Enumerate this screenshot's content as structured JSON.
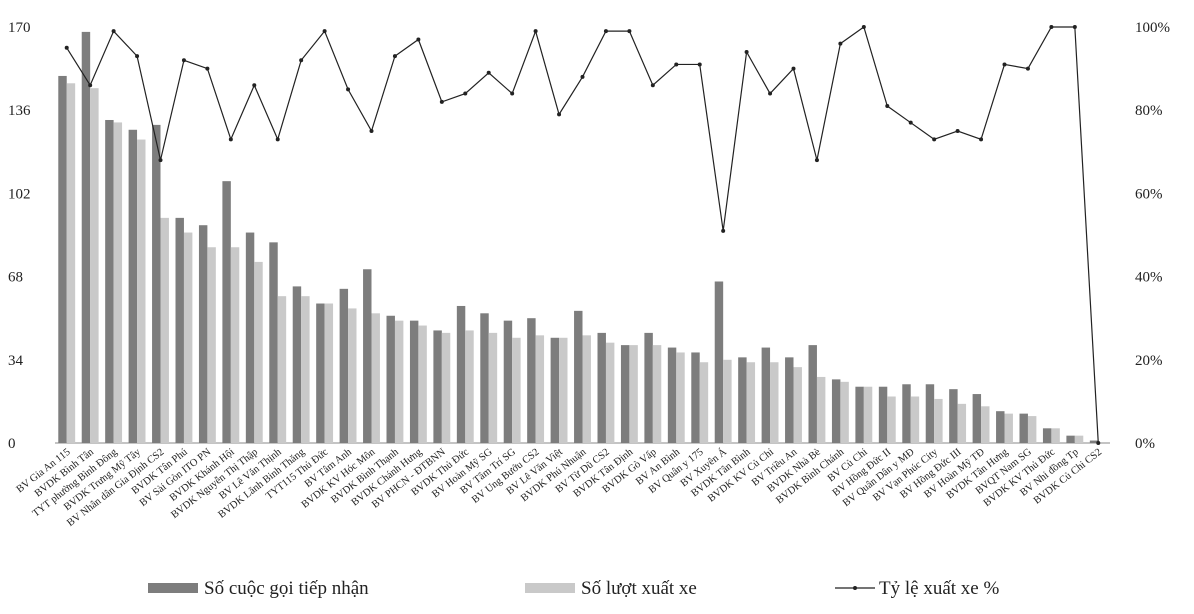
{
  "chart_data": {
    "type": "bar-line",
    "categories": [
      "BV Gia An 115",
      "BVDK Bình Tân",
      "TYT phường Bình Đông",
      "BVDK Trưng Mỹ Tây",
      "BV Nhân dân Gia Định CS2",
      "BVDK Tân Phú",
      "BV Sài Gòn ITO PN",
      "BVDK Khánh Hội",
      "BVDK Nguyễn Thị Thập",
      "BV Lê Văn Thịnh",
      "BVDK Lãnh Binh Thăng",
      "TYT115 Thủ Đức",
      "BV Tâm Anh",
      "BVDK KV Hóc Môn",
      "BVDK Bình Thạnh",
      "BVDK Chánh Hưng",
      "BV PHCN - ĐTBNN",
      "BVDK Thủ Đức",
      "BV Hoàn Mỹ SG",
      "BV Tâm Trí SG",
      "BV Ung Bướu CS2",
      "BV Lê Văn Việt",
      "BVDK Phú Nhuận",
      "BV Từ Dũ CS2",
      "BVDK Tân Định",
      "BVDK Gò Vấp",
      "BV An Bình",
      "BV Quân y 175",
      "BV Xuyên Á",
      "BVDK Tân Bình",
      "BVDK KV Củ Chi",
      "BV Triều An",
      "BVDK Nhà Bè",
      "BVDK Bình Chánh",
      "BV Củ Chi",
      "BV Hồng Đức II",
      "BV Quân Dân y MĐ",
      "BV Vạn Phúc City",
      "BV Hồng Đức III",
      "BV Hoàn Mỹ TĐ",
      "BVDK Tân Hưng",
      "BVQT Nam SG",
      "BVDK KV Thủ Đức",
      "BV Nhi đồng Tp",
      "BVDK Củ Chi CS2"
    ],
    "series": [
      {
        "name": "Số cuộc gọi tiếp nhận",
        "color": "#7d7d7d",
        "values": [
          150,
          168,
          132,
          128,
          130,
          92,
          89,
          107,
          86,
          82,
          64,
          57,
          63,
          71,
          52,
          50,
          46,
          56,
          53,
          50,
          51,
          43,
          54,
          45,
          40,
          45,
          39,
          37,
          66,
          35,
          39,
          35,
          40,
          26,
          23,
          23,
          24,
          24,
          22,
          20,
          13,
          12,
          6,
          3,
          1
        ]
      },
      {
        "name": "Số lượt xuất xe",
        "color": "#c9c9c9",
        "values": [
          147,
          145,
          131,
          124,
          92,
          86,
          80,
          80,
          74,
          60,
          60,
          57,
          55,
          53,
          50,
          48,
          45,
          46,
          45,
          43,
          44,
          43,
          44,
          41,
          40,
          40,
          37,
          33,
          34,
          33,
          33,
          31,
          27,
          25,
          23,
          19,
          19,
          18,
          16,
          15,
          12,
          11,
          6,
          3,
          0
        ]
      },
      {
        "name": "Tỷ lệ xuất xe %",
        "color": "#222222",
        "axis": "y2",
        "values": [
          95,
          86,
          99,
          93,
          68,
          92,
          90,
          73,
          86,
          73,
          92,
          99,
          85,
          75,
          93,
          97,
          82,
          84,
          89,
          84,
          99,
          79,
          88,
          99,
          99,
          86,
          91,
          91,
          51,
          94,
          84,
          90,
          68,
          96,
          100,
          81,
          77,
          73,
          75,
          73,
          91,
          90,
          100,
          100,
          0
        ]
      }
    ],
    "ylim": [
      0,
      170
    ],
    "yticks": [
      0,
      34,
      68,
      102,
      136,
      170
    ],
    "y2lim": [
      0,
      100
    ],
    "y2ticks": [
      {
        "value": 0,
        "label": "0%"
      },
      {
        "value": 20,
        "label": "20%"
      },
      {
        "value": 40,
        "label": "40%"
      },
      {
        "value": 60,
        "label": "60%"
      },
      {
        "value": 80,
        "label": "80%"
      },
      {
        "value": 100,
        "label": "100%"
      }
    ],
    "legend": "bottom"
  }
}
